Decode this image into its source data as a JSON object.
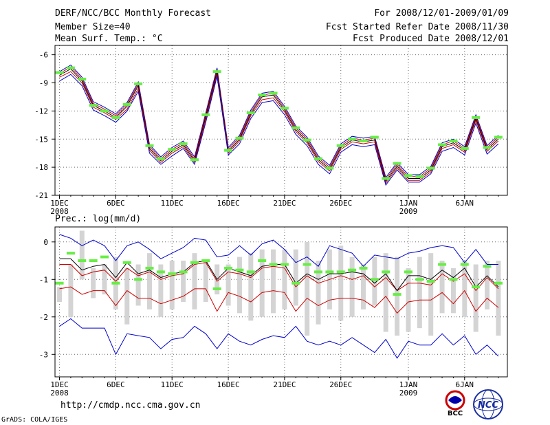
{
  "header": {
    "title": "DERF/NCC/BCC Monthly Forecast",
    "member": "Member Size=40",
    "variable": "Mean Surf. Temp.: °C",
    "period": "For 2008/12/01-2009/01/09",
    "fcst_start": "Fcst Started Refer Date 2008/11/30",
    "fcst_produced": "Fcst Produced Date 2008/12/01"
  },
  "footer": {
    "url": "http://cmdp.ncc.cma.gov.cn",
    "credit": "GrADS: COLA/IGES",
    "logo_bcc": "BCC",
    "logo_ncc": "NCC"
  },
  "colors": {
    "blue": "#0000cc",
    "red": "#cc0000",
    "green": "#66ee44",
    "grey": "#d4d4d4",
    "black": "#000000"
  },
  "chart_data": [
    {
      "type": "line",
      "title": "Mean Surf. Temp.: °C",
      "ylim": [
        -21,
        -5
      ],
      "yticks": [
        -6,
        -9,
        -12,
        -15,
        -18,
        -21
      ],
      "xlim": [
        0.6,
        40.8
      ],
      "xticks": [
        {
          "day": 1,
          "label": "1DEC",
          "sub": "2008"
        },
        {
          "day": 6,
          "label": "6DEC",
          "sub": ""
        },
        {
          "day": 11,
          "label": "11DEC",
          "sub": ""
        },
        {
          "day": 16,
          "label": "16DEC",
          "sub": ""
        },
        {
          "day": 21,
          "label": "21DEC",
          "sub": ""
        },
        {
          "day": 26,
          "label": "26DEC",
          "sub": ""
        },
        {
          "day": 32,
          "label": "1JAN",
          "sub": "2009"
        },
        {
          "day": 37,
          "label": "6JAN",
          "sub": ""
        }
      ],
      "series": [
        {
          "name": "blue-upper",
          "color": "#0000cc",
          "values": [
            -7.8,
            -7.1,
            -8.4,
            -11.0,
            -11.6,
            -12.3,
            -11.1,
            -8.9,
            -15.6,
            -16.9,
            -15.9,
            -15.2,
            -16.9,
            -12.2,
            -7.4,
            -15.9,
            -14.6,
            -11.9,
            -10.1,
            -9.9,
            -11.5,
            -13.6,
            -14.8,
            -16.8,
            -17.8,
            -15.5,
            -14.7,
            -14.9,
            -14.7,
            -19.1,
            -17.5,
            -18.8,
            -18.8,
            -17.9,
            -15.4,
            -15.0,
            -15.8,
            -12.4,
            -15.7,
            -14.6
          ]
        },
        {
          "name": "red-upper",
          "color": "#cc0000",
          "values": [
            -8.0,
            -7.3,
            -8.6,
            -11.2,
            -11.8,
            -12.5,
            -11.3,
            -9.1,
            -15.8,
            -17.1,
            -16.1,
            -15.4,
            -17.1,
            -12.4,
            -7.6,
            -16.1,
            -14.8,
            -12.1,
            -10.3,
            -10.1,
            -11.7,
            -13.8,
            -15.0,
            -17.0,
            -18.0,
            -15.7,
            -14.9,
            -15.1,
            -14.9,
            -19.3,
            -17.7,
            -19.0,
            -19.0,
            -18.1,
            -15.6,
            -15.2,
            -16.0,
            -12.6,
            -15.9,
            -14.8
          ]
        },
        {
          "name": "mean",
          "color": "#000000",
          "values": [
            -8.2,
            -7.5,
            -8.8,
            -11.4,
            -12.0,
            -12.7,
            -11.5,
            -9.3,
            -16.0,
            -17.3,
            -16.3,
            -15.6,
            -17.3,
            -12.6,
            -7.8,
            -16.3,
            -15.0,
            -12.3,
            -10.5,
            -10.3,
            -11.9,
            -14.0,
            -15.2,
            -17.2,
            -18.2,
            -15.9,
            -15.1,
            -15.3,
            -15.1,
            -19.5,
            -17.9,
            -19.2,
            -19.2,
            -18.3,
            -15.8,
            -15.4,
            -16.2,
            -12.8,
            -16.1,
            -15.0
          ]
        },
        {
          "name": "red-lower",
          "color": "#cc0000",
          "values": [
            -8.4,
            -7.8,
            -9.0,
            -11.6,
            -12.2,
            -12.9,
            -11.8,
            -9.6,
            -16.2,
            -17.5,
            -16.5,
            -15.8,
            -17.5,
            -12.9,
            -8.1,
            -16.5,
            -15.2,
            -12.5,
            -10.8,
            -10.6,
            -12.1,
            -14.2,
            -15.4,
            -17.4,
            -18.4,
            -16.1,
            -15.3,
            -15.5,
            -15.3,
            -19.7,
            -18.1,
            -19.4,
            -19.4,
            -18.5,
            -16.0,
            -15.6,
            -16.4,
            -13.0,
            -16.3,
            -15.2
          ]
        },
        {
          "name": "blue-lower",
          "color": "#0000cc",
          "values": [
            -8.8,
            -8.1,
            -9.3,
            -11.9,
            -12.5,
            -13.2,
            -12.0,
            -9.9,
            -16.5,
            -17.7,
            -16.8,
            -16.0,
            -17.7,
            -13.2,
            -8.3,
            -16.7,
            -15.5,
            -12.8,
            -11.1,
            -10.9,
            -12.4,
            -14.5,
            -15.7,
            -17.7,
            -18.7,
            -16.4,
            -15.6,
            -15.8,
            -15.6,
            -19.9,
            -18.3,
            -19.6,
            -19.6,
            -18.7,
            -16.3,
            -15.9,
            -16.7,
            -13.3,
            -16.6,
            -15.5
          ]
        },
        {
          "name": "observed",
          "color": "#66ee44",
          "style": "markers",
          "values": [
            -7.9,
            -7.4,
            -8.6,
            -11.4,
            -12.0,
            -12.7,
            -11.3,
            -9.1,
            -15.7,
            -17.1,
            -16.1,
            -15.5,
            -17.2,
            -12.4,
            -7.8,
            -16.2,
            -14.9,
            -12.2,
            -10.3,
            -10.1,
            -11.7,
            -13.8,
            -15.1,
            -17.1,
            -18.1,
            -15.7,
            -15.0,
            -15.2,
            -14.8,
            -19.2,
            -17.6,
            -18.9,
            -19.0,
            -18.1,
            -15.6,
            -15.2,
            -16.0,
            -12.7,
            -15.9,
            -14.8
          ]
        }
      ]
    },
    {
      "type": "line",
      "title": "Prec.: log(mm/d)",
      "ylim": [
        -3.6,
        0.4
      ],
      "yticks": [
        0,
        -1,
        -2,
        -3
      ],
      "xlim": [
        0.6,
        40.8
      ],
      "xticks": [
        {
          "day": 1,
          "label": "1DEC",
          "sub": "2008"
        },
        {
          "day": 6,
          "label": "6DEC",
          "sub": ""
        },
        {
          "day": 11,
          "label": "11DEC",
          "sub": ""
        },
        {
          "day": 16,
          "label": "16DEC",
          "sub": ""
        },
        {
          "day": 21,
          "label": "21DEC",
          "sub": ""
        },
        {
          "day": 26,
          "label": "26DEC",
          "sub": ""
        },
        {
          "day": 32,
          "label": "1JAN",
          "sub": "2009"
        },
        {
          "day": 37,
          "label": "6JAN",
          "sub": ""
        }
      ],
      "boxes": {
        "color": "#d4d4d4",
        "low": [
          -1.6,
          -2.0,
          -1.0,
          -1.5,
          -1.4,
          -1.8,
          -2.2,
          -1.7,
          -1.8,
          -2.0,
          -1.8,
          -1.6,
          -1.8,
          -1.6,
          -1.4,
          -1.7,
          -1.9,
          -2.1,
          -2.0,
          -1.9,
          -1.8,
          -1.7,
          -2.5,
          -2.2,
          -1.8,
          -2.1,
          -2.0,
          -1.8,
          -1.7,
          -2.4,
          -2.5,
          -2.4,
          -2.3,
          -2.5,
          -1.9,
          -1.9,
          -2.0,
          -2.4,
          -1.8,
          -2.5
        ],
        "high": [
          -1.2,
          -0.6,
          0.3,
          -0.7,
          -0.6,
          -0.4,
          -0.7,
          -0.6,
          -0.3,
          -0.6,
          -0.5,
          -0.5,
          -0.3,
          -0.5,
          -0.6,
          -0.6,
          -0.4,
          -0.3,
          -0.2,
          -0.2,
          -0.2,
          -0.2,
          0.0,
          -0.5,
          -0.2,
          -0.1,
          -0.4,
          -0.6,
          -0.4,
          -0.3,
          -0.4,
          -0.7,
          -0.4,
          -0.3,
          -0.5,
          -0.7,
          -0.5,
          -0.6,
          -0.5,
          -0.5
        ]
      },
      "series": [
        {
          "name": "blue-upper",
          "color": "#0000cc",
          "values": [
            0.2,
            0.1,
            -0.1,
            0.05,
            -0.1,
            -0.5,
            -0.1,
            0.0,
            -0.2,
            -0.45,
            -0.3,
            -0.15,
            0.1,
            0.05,
            -0.4,
            -0.35,
            -0.1,
            -0.35,
            -0.05,
            0.05,
            -0.2,
            -0.55,
            -0.4,
            -0.65,
            -0.1,
            -0.2,
            -0.3,
            -0.65,
            -0.35,
            -0.4,
            -0.45,
            -0.3,
            -0.25,
            -0.15,
            -0.1,
            -0.15,
            -0.55,
            -0.2,
            -0.6,
            -0.6
          ]
        },
        {
          "name": "red-upper",
          "color": "#cc0000",
          "values": [
            -0.6,
            -0.6,
            -0.9,
            -0.8,
            -0.75,
            -1.05,
            -0.7,
            -0.9,
            -0.8,
            -1.0,
            -0.9,
            -0.85,
            -0.6,
            -0.55,
            -1.05,
            -0.8,
            -0.85,
            -0.95,
            -0.7,
            -0.65,
            -0.7,
            -1.2,
            -0.9,
            -1.1,
            -1.0,
            -0.9,
            -1.0,
            -0.9,
            -1.2,
            -0.95,
            -1.3,
            -1.1,
            -1.1,
            -1.15,
            -0.85,
            -1.05,
            -0.85,
            -1.3,
            -0.95,
            -1.25
          ]
        },
        {
          "name": "mean",
          "color": "#000000",
          "values": [
            -0.45,
            -0.45,
            -0.75,
            -0.65,
            -0.6,
            -0.95,
            -0.55,
            -0.85,
            -0.75,
            -0.95,
            -0.85,
            -0.8,
            -0.55,
            -0.5,
            -1.0,
            -0.7,
            -0.8,
            -0.9,
            -0.65,
            -0.6,
            -0.6,
            -1.1,
            -0.85,
            -1.0,
            -0.85,
            -0.85,
            -0.8,
            -0.85,
            -1.1,
            -0.85,
            -1.3,
            -0.9,
            -0.9,
            -1.0,
            -0.75,
            -0.95,
            -0.7,
            -1.2,
            -0.9,
            -1.2
          ]
        },
        {
          "name": "red-lower",
          "color": "#cc0000",
          "values": [
            -1.25,
            -1.2,
            -1.4,
            -1.3,
            -1.3,
            -1.7,
            -1.3,
            -1.5,
            -1.5,
            -1.65,
            -1.55,
            -1.45,
            -1.25,
            -1.25,
            -1.85,
            -1.35,
            -1.45,
            -1.6,
            -1.35,
            -1.3,
            -1.35,
            -1.85,
            -1.5,
            -1.7,
            -1.55,
            -1.5,
            -1.5,
            -1.55,
            -1.75,
            -1.45,
            -1.9,
            -1.6,
            -1.55,
            -1.55,
            -1.35,
            -1.65,
            -1.3,
            -1.85,
            -1.5,
            -1.75
          ]
        },
        {
          "name": "blue-lower",
          "color": "#0000cc",
          "values": [
            -2.25,
            -2.05,
            -2.3,
            -2.3,
            -2.3,
            -3.0,
            -2.45,
            -2.5,
            -2.55,
            -2.85,
            -2.6,
            -2.55,
            -2.25,
            -2.45,
            -2.85,
            -2.45,
            -2.65,
            -2.75,
            -2.6,
            -2.5,
            -2.55,
            -2.25,
            -2.65,
            -2.75,
            -2.65,
            -2.75,
            -2.55,
            -2.75,
            -2.95,
            -2.6,
            -3.1,
            -2.65,
            -2.75,
            -2.75,
            -2.45,
            -2.75,
            -2.5,
            -3.0,
            -2.75,
            -3.05
          ]
        },
        {
          "name": "observed",
          "color": "#66ee44",
          "style": "markers",
          "values": [
            -1.1,
            -0.3,
            -0.5,
            -0.5,
            -0.4,
            -1.1,
            -0.55,
            -1.0,
            -0.7,
            -0.8,
            -0.85,
            -0.8,
            -0.55,
            -0.5,
            -1.25,
            -0.7,
            -0.75,
            -0.8,
            -0.5,
            -0.6,
            -0.6,
            -1.1,
            -0.6,
            -0.8,
            -0.8,
            -0.8,
            -0.75,
            -0.7,
            -1.0,
            -0.8,
            -1.4,
            -0.8,
            -1.0,
            -1.05,
            -0.6,
            -1.0,
            -0.6,
            -1.2,
            -0.65,
            -1.1
          ]
        }
      ]
    }
  ]
}
